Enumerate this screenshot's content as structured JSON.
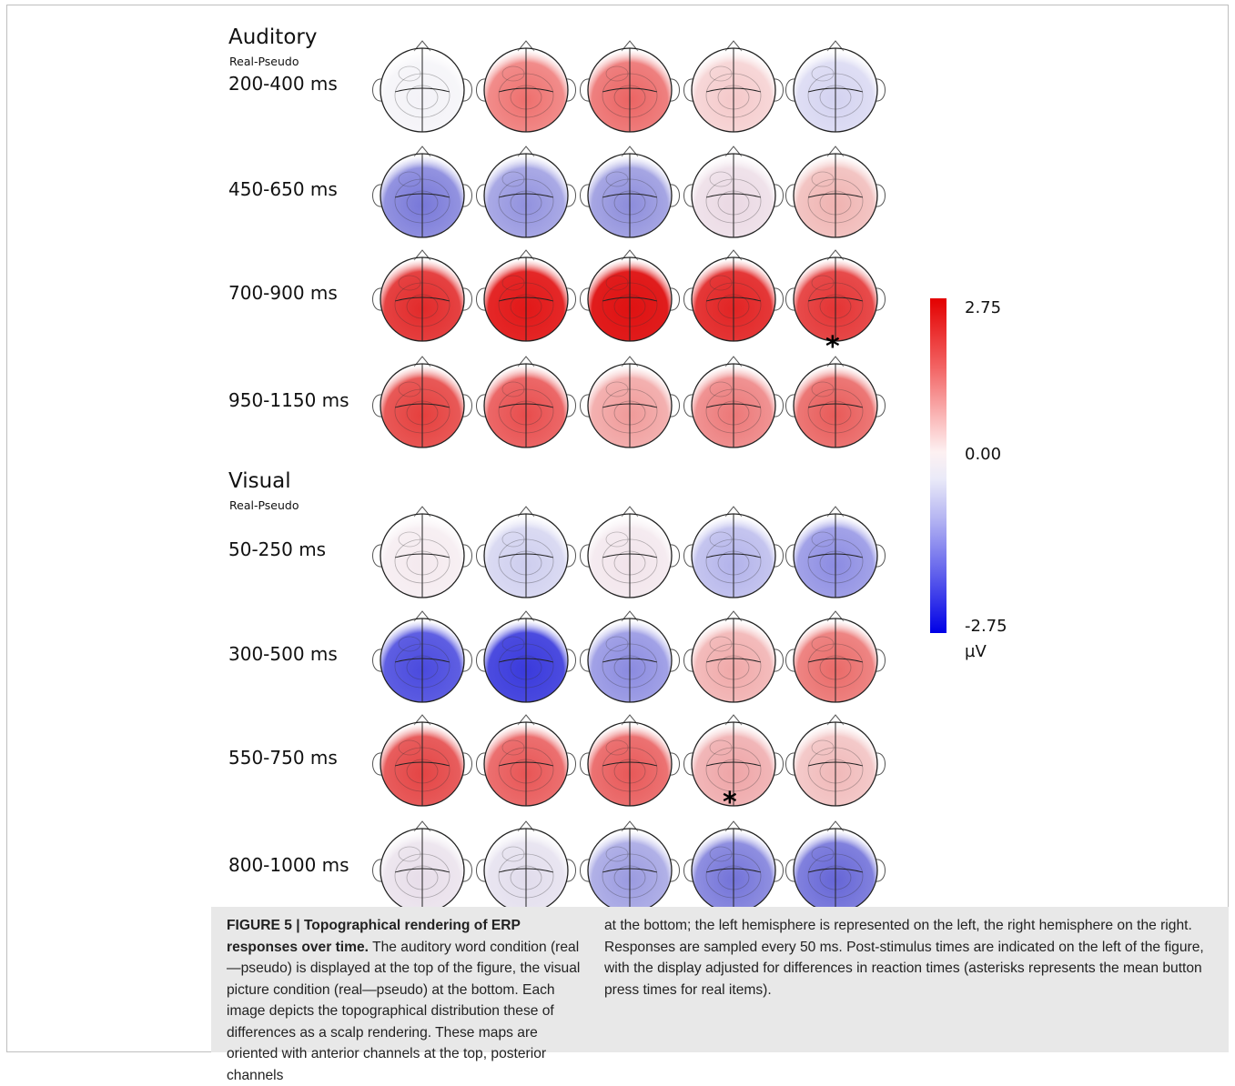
{
  "sections": [
    {
      "title": "Auditory",
      "subtitle": "Real-Pseudo",
      "rows": [
        {
          "label": "200-400 ms",
          "maps": [
            {
              "color": "#f3f2f7",
              "intensity": 0.35
            },
            {
              "color": "#ee6f6d",
              "intensity": 0.55
            },
            {
              "color": "#eb6463",
              "intensity": 0.6
            },
            {
              "color": "#f4c8c9",
              "intensity": 0.4
            },
            {
              "color": "#d3d2f0",
              "intensity": 0.4
            }
          ]
        },
        {
          "label": "450-650 ms",
          "maps": [
            {
              "color": "#7777d8",
              "intensity": 0.55
            },
            {
              "color": "#9191de",
              "intensity": 0.5
            },
            {
              "color": "#8c8cdb",
              "intensity": 0.5
            },
            {
              "color": "#ead8e3",
              "intensity": 0.4
            },
            {
              "color": "#efb2b0",
              "intensity": 0.45
            }
          ]
        },
        {
          "label": "700-900 ms",
          "maps": [
            {
              "color": "#e22a2a",
              "intensity": 0.75
            },
            {
              "color": "#e21818",
              "intensity": 0.85
            },
            {
              "color": "#df1212",
              "intensity": 0.9
            },
            {
              "color": "#e22424",
              "intensity": 0.8
            },
            {
              "color": "#e43434",
              "intensity": 0.75
            }
          ]
        },
        {
          "label": "950-1150 ms",
          "maps": [
            {
              "color": "#e53f3d",
              "intensity": 0.7
            },
            {
              "color": "#e84c4c",
              "intensity": 0.65
            },
            {
              "color": "#f09a99",
              "intensity": 0.5
            },
            {
              "color": "#ec7777",
              "intensity": 0.55
            },
            {
              "color": "#e85a58",
              "intensity": 0.6
            }
          ]
        }
      ]
    },
    {
      "title": "Visual",
      "subtitle": "Real-Pseudo",
      "rows": [
        {
          "label": "50-250 ms",
          "maps": [
            {
              "color": "#f4e9ee",
              "intensity": 0.35
            },
            {
              "color": "#cdcdee",
              "intensity": 0.4
            },
            {
              "color": "#f1e3ea",
              "intensity": 0.35
            },
            {
              "color": "#b2b2ea",
              "intensity": 0.45
            },
            {
              "color": "#8b8be2",
              "intensity": 0.55
            }
          ]
        },
        {
          "label": "300-500 ms",
          "maps": [
            {
              "color": "#4a4ade",
              "intensity": 0.75
            },
            {
              "color": "#3a3adc",
              "intensity": 0.8
            },
            {
              "color": "#8a8ae0",
              "intensity": 0.55
            },
            {
              "color": "#f0a8a8",
              "intensity": 0.5
            },
            {
              "color": "#ea6a68",
              "intensity": 0.6
            }
          ]
        },
        {
          "label": "550-750 ms",
          "maps": [
            {
              "color": "#e44444",
              "intensity": 0.7
            },
            {
              "color": "#e85555",
              "intensity": 0.65
            },
            {
              "color": "#e85858",
              "intensity": 0.65
            },
            {
              "color": "#eea4a6",
              "intensity": 0.55
            },
            {
              "color": "#f0b8b8",
              "intensity": 0.45
            }
          ]
        },
        {
          "label": "800-1000 ms",
          "maps": [
            {
              "color": "#e7dde9",
              "intensity": 0.4
            },
            {
              "color": "#e1dcec",
              "intensity": 0.4
            },
            {
              "color": "#9a9ae0",
              "intensity": 0.5
            },
            {
              "color": "#7272d8",
              "intensity": 0.55
            },
            {
              "color": "#6565d6",
              "intensity": 0.6
            }
          ]
        }
      ]
    }
  ],
  "asterisks": [
    "*",
    "*"
  ],
  "colorbar": {
    "max_label": "2.75",
    "mid_label": "0.00",
    "min_label": "-2.75",
    "unit": "µV",
    "max_color": "#e30000",
    "min_color": "#0000e6"
  },
  "caption": {
    "heading": "FIGURE 5 | Topographical rendering of ERP responses over time.",
    "left_text": " The auditory word condition (real—pseudo) is displayed at the top of the figure, the visual picture condition (real—pseudo) at the bottom. Each image depicts the topographical distribution these of differences as a scalp rendering. These maps are oriented with anterior channels at the top, posterior channels",
    "right_text": "at the bottom; the left hemisphere is represented on the left, the right hemisphere on the right. Responses are sampled every 50 ms. Post-stimulus times are indicated on the left of the figure, with the display adjusted for differences in reaction times (asterisks represents the mean button press times for real items)."
  }
}
